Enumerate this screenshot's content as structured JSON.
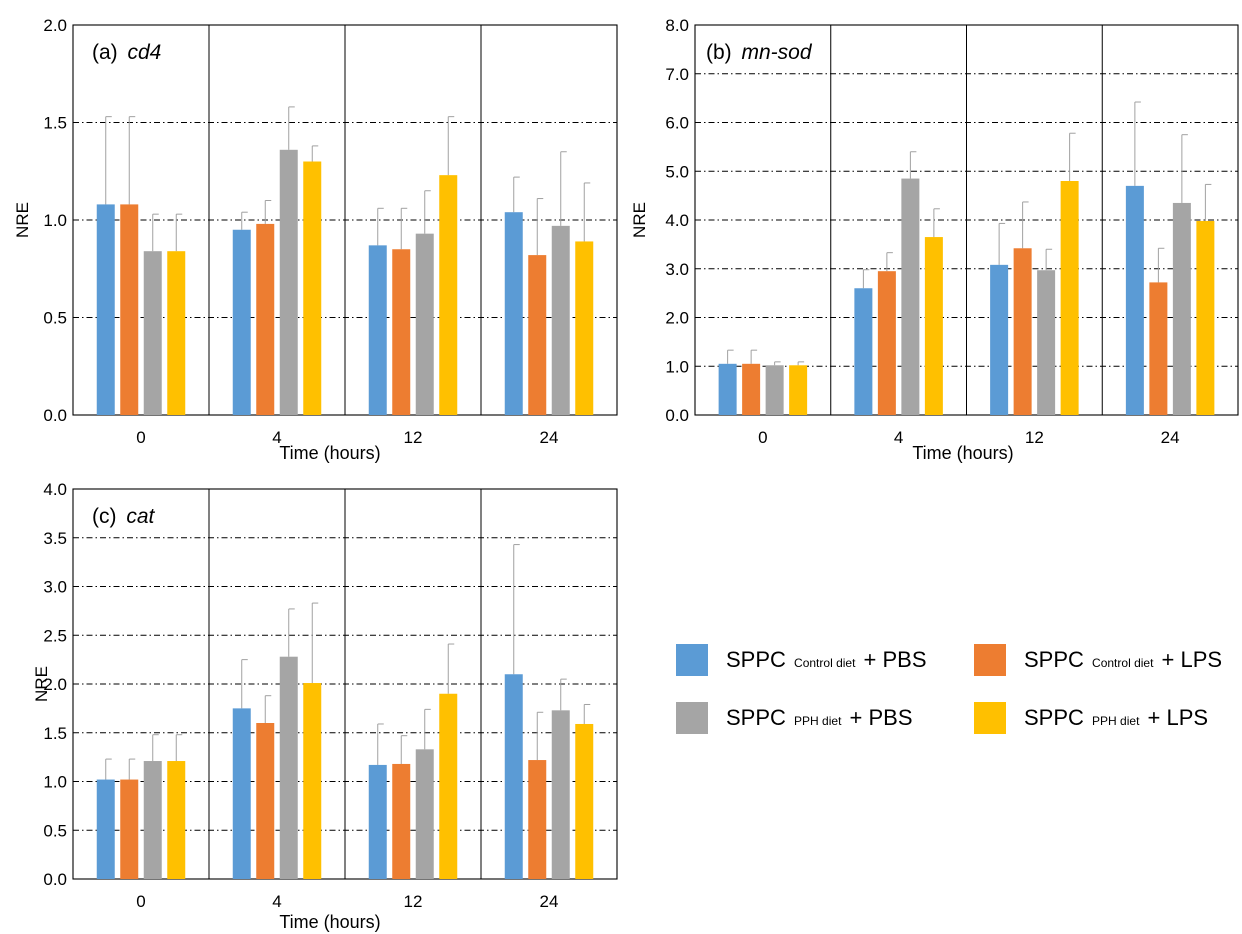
{
  "figure": {
    "colors": {
      "control_pbs": "#5b9bd5",
      "control_lps": "#ed7d31",
      "pph_pbs": "#a5a5a5",
      "pph_lps": "#ffc000",
      "error_bar": "#a0a0a0"
    },
    "legend": {
      "items": [
        {
          "prefix": "SPPC",
          "sub": "Control diet",
          "suffix": "+  PBS",
          "color": "#5b9bd5"
        },
        {
          "prefix": "SPPC",
          "sub": "Control diet",
          "suffix": "+  LPS",
          "color": "#ed7d31"
        },
        {
          "prefix": "SPPC",
          "sub": "PPH diet",
          "suffix": "+  PBS",
          "color": "#a5a5a5"
        },
        {
          "prefix": "SPPC",
          "sub": "PPH diet",
          "suffix": "+  LPS",
          "color": "#ffc000"
        }
      ]
    }
  },
  "chart_data": [
    {
      "type": "bar",
      "label": "(a)",
      "gene": "cd4",
      "xlabel": "Time (hours)",
      "ylabel": "NRE",
      "categories": [
        "0",
        "4",
        "12",
        "24"
      ],
      "ylim": [
        0,
        2.0
      ],
      "yticks": [
        "0.0",
        "0.5",
        "1.0",
        "1.5",
        "2.0"
      ],
      "series": [
        {
          "values": [
            1.08,
            0.95,
            0.87,
            1.04
          ],
          "errors": [
            0.45,
            0.09,
            0.19,
            0.18
          ]
        },
        {
          "values": [
            1.08,
            0.98,
            0.85,
            0.82
          ],
          "errors": [
            0.45,
            0.12,
            0.21,
            0.29
          ]
        },
        {
          "values": [
            0.84,
            1.36,
            0.93,
            0.97
          ],
          "errors": [
            0.19,
            0.22,
            0.22,
            0.38
          ]
        },
        {
          "values": [
            0.84,
            1.3,
            1.23,
            0.89
          ],
          "errors": [
            0.19,
            0.08,
            0.3,
            0.3
          ]
        }
      ]
    },
    {
      "type": "bar",
      "label": "(b)",
      "gene": "mn-sod",
      "xlabel": "Time (hours)",
      "ylabel": "NRE",
      "categories": [
        "0",
        "4",
        "12",
        "24"
      ],
      "ylim": [
        0,
        8.0
      ],
      "yticks": [
        "0.0",
        "1.0",
        "2.0",
        "3.0",
        "4.0",
        "5.0",
        "6.0",
        "7.0",
        "8.0"
      ],
      "series": [
        {
          "values": [
            1.05,
            2.6,
            3.08,
            4.7
          ],
          "errors": [
            0.28,
            0.38,
            0.85,
            1.72
          ]
        },
        {
          "values": [
            1.05,
            2.95,
            3.42,
            2.72
          ],
          "errors": [
            0.28,
            0.38,
            0.95,
            0.7
          ]
        },
        {
          "values": [
            1.02,
            4.85,
            2.97,
            4.35
          ],
          "errors": [
            0.07,
            0.55,
            0.43,
            1.4
          ]
        },
        {
          "values": [
            1.02,
            3.65,
            4.8,
            3.98
          ],
          "errors": [
            0.07,
            0.58,
            0.98,
            0.75
          ]
        }
      ]
    },
    {
      "type": "bar",
      "label": "(c)",
      "gene": "cat",
      "xlabel": "Time (hours)",
      "ylabel": "NRE",
      "categories": [
        "0",
        "4",
        "12",
        "24"
      ],
      "ylim": [
        0,
        4.0
      ],
      "yticks": [
        "0.0",
        "0.5",
        "1.0",
        "1.5",
        "2.0",
        "2.5",
        "3.0",
        "3.5",
        "4.0"
      ],
      "series": [
        {
          "values": [
            1.02,
            1.75,
            1.17,
            2.1
          ],
          "errors": [
            0.21,
            0.5,
            0.42,
            1.33
          ]
        },
        {
          "values": [
            1.02,
            1.6,
            1.18,
            1.22
          ],
          "errors": [
            0.21,
            0.28,
            0.29,
            0.49
          ]
        },
        {
          "values": [
            1.21,
            2.28,
            1.33,
            1.73
          ],
          "errors": [
            0.27,
            0.49,
            0.41,
            0.32
          ]
        },
        {
          "values": [
            1.21,
            2.01,
            1.9,
            1.59
          ],
          "errors": [
            0.27,
            0.82,
            0.51,
            0.2
          ]
        }
      ]
    }
  ]
}
